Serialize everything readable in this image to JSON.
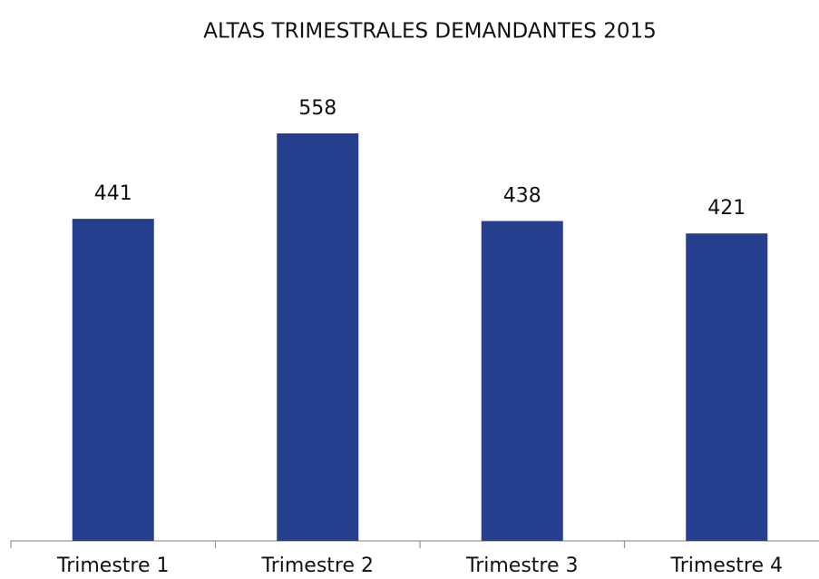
{
  "chart_data": {
    "type": "bar",
    "title": "ALTAS TRIMESTRALES DEMANDANTES 2015",
    "categories": [
      "Trimestre 1",
      "Trimestre 2",
      "Trimestre 3",
      "Trimestre 4"
    ],
    "values": [
      441,
      558,
      438,
      421
    ],
    "color": "#253f8e"
  }
}
